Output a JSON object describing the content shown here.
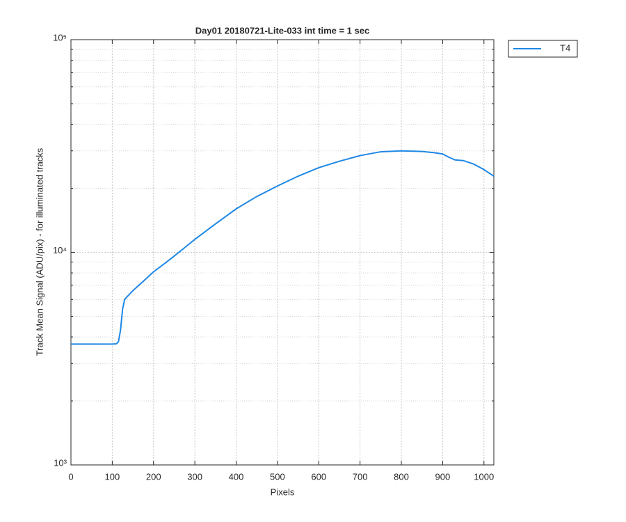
{
  "chart_data": {
    "type": "line",
    "title": "Day01 20180721-Lite-033 int time = 1 sec",
    "xlabel": "Pixels",
    "ylabel": "Track Mean Signal (ADU/pix) - for illuminated tracks",
    "x": [
      0,
      50,
      100,
      110,
      115,
      120,
      125,
      130,
      140,
      150,
      175,
      200,
      225,
      250,
      275,
      300,
      350,
      400,
      450,
      500,
      550,
      600,
      650,
      700,
      750,
      800,
      850,
      880,
      900,
      915,
      930,
      950,
      975,
      1000,
      1024
    ],
    "series": [
      {
        "name": "T4",
        "color": "#1e88e5",
        "values": [
          3700,
          3700,
          3700,
          3710,
          3800,
          4300,
          5400,
          6000,
          6300,
          6600,
          7300,
          8100,
          8800,
          9600,
          10500,
          11500,
          13600,
          16000,
          18300,
          20500,
          22800,
          25000,
          26800,
          28500,
          29700,
          30000,
          29800,
          29400,
          29000,
          28000,
          27200,
          27000,
          26000,
          24500,
          22800
        ]
      }
    ],
    "xlim": [
      0,
      1024
    ],
    "xticks": [
      0,
      100,
      200,
      300,
      400,
      500,
      600,
      700,
      800,
      900,
      1000
    ],
    "ylim": [
      1000,
      100000
    ],
    "yscale": "log",
    "yticks": [
      {
        "value": 1000,
        "label": "10³"
      },
      {
        "value": 10000,
        "label": "10⁴"
      },
      {
        "value": 100000,
        "label": "10⁵"
      }
    ],
    "grid": true,
    "minor_grid": true,
    "legend": "outside-top-right"
  }
}
